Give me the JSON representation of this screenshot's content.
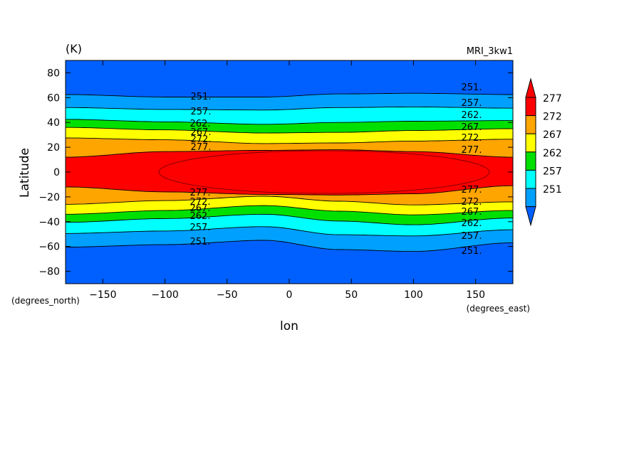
{
  "chart_data": {
    "type": "contour",
    "unit_label": "(K)",
    "model_label": "MRI_3kw1",
    "xlabel": "lon",
    "ylabel": "Latitude",
    "x_unit": "(degrees_east)",
    "y_unit": "(degrees_north)",
    "xlim": [
      -180,
      180
    ],
    "ylim": [
      -90,
      90
    ],
    "x_ticks": [
      -150,
      -100,
      -50,
      0,
      50,
      100,
      150
    ],
    "y_ticks": [
      80,
      60,
      40,
      20,
      0,
      -20,
      -40,
      -60,
      -80
    ],
    "levels": [
      251,
      257,
      262,
      267,
      272,
      277
    ],
    "colorbar": {
      "labels": [
        "277",
        "272",
        "267",
        "262",
        "257",
        "251"
      ],
      "colors": [
        "#ff0000",
        "#ffa500",
        "#ffff00",
        "#00e000",
        "#00ffff",
        "#00a0ff"
      ],
      "low_color": "#0060ff",
      "high_color": "#ff0000"
    },
    "band_colors": [
      "#0060ff",
      "#00a0ff",
      "#00ffff",
      "#00e000",
      "#ffff00",
      "#ffa500",
      "#ff0000"
    ],
    "contour_labels": {
      "north_left": [
        "251.",
        "257.",
        "262.",
        "267.",
        "272.",
        "277."
      ],
      "north_right": [
        "251.",
        "257.",
        "262.",
        "267.",
        "272.",
        "277."
      ],
      "south_left": [
        "277.",
        "272.",
        "267.",
        "262.",
        "257.",
        "251."
      ],
      "south_right": [
        "277.",
        "272.",
        "267.",
        "262.",
        "257.",
        "251."
      ]
    }
  }
}
